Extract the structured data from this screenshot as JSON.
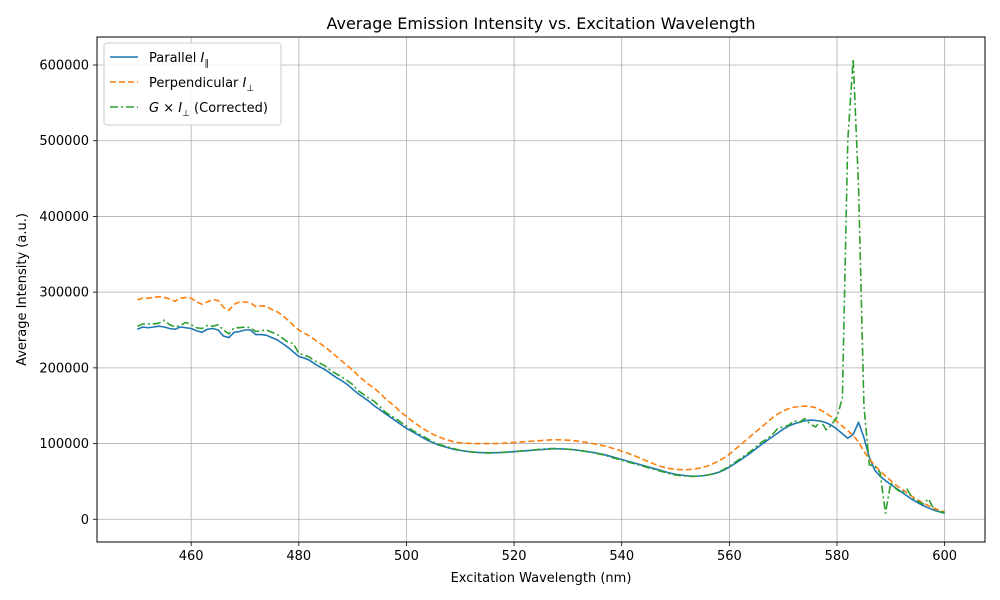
{
  "chart_data": {
    "type": "line",
    "title": "Average Emission Intensity vs. Excitation Wavelength",
    "xlabel": "Excitation Wavelength (nm)",
    "ylabel": "Average Intensity (a.u.)",
    "xlim": [
      442.5,
      607.5
    ],
    "ylim": [
      -30000,
      637000
    ],
    "xticks": [
      460,
      480,
      500,
      520,
      540,
      560,
      580,
      600
    ],
    "yticks": [
      0,
      100000,
      200000,
      300000,
      400000,
      500000,
      600000
    ],
    "grid": true,
    "legend_position": "top-left",
    "x": [
      450,
      451,
      452,
      453,
      454,
      455,
      456,
      457,
      458,
      459,
      460,
      461,
      462,
      463,
      464,
      465,
      466,
      467,
      468,
      469,
      470,
      471,
      472,
      473,
      474,
      475,
      476,
      477,
      478,
      479,
      480,
      481,
      482,
      483,
      484,
      485,
      486,
      487,
      488,
      489,
      490,
      491,
      492,
      493,
      494,
      495,
      496,
      497,
      498,
      499,
      500,
      501,
      502,
      503,
      504,
      505,
      506,
      507,
      508,
      509,
      510,
      511,
      512,
      513,
      514,
      515,
      516,
      517,
      518,
      519,
      520,
      521,
      522,
      523,
      524,
      525,
      526,
      527,
      528,
      529,
      530,
      531,
      532,
      533,
      534,
      535,
      536,
      537,
      538,
      539,
      540,
      541,
      542,
      543,
      544,
      545,
      546,
      547,
      548,
      549,
      550,
      551,
      552,
      553,
      554,
      555,
      556,
      557,
      558,
      559,
      560,
      561,
      562,
      563,
      564,
      565,
      566,
      567,
      568,
      569,
      570,
      571,
      572,
      573,
      574,
      575,
      576,
      577,
      578,
      579,
      580,
      581,
      582,
      583,
      584,
      585,
      586,
      587,
      588,
      589,
      590,
      591,
      592,
      593,
      594,
      595,
      596,
      597,
      598,
      599,
      600
    ],
    "series": [
      {
        "name": "Parallel $I_\\parallel$",
        "label_main": "Parallel ",
        "label_sym": "I",
        "label_sub": "∥",
        "label_post": "",
        "color": "#1f77b4",
        "dash": "solid",
        "values": [
          251000,
          254000,
          253000,
          254000,
          255000,
          254000,
          252000,
          251000,
          254000,
          253000,
          252000,
          249000,
          247000,
          251000,
          252000,
          250000,
          242000,
          240000,
          247000,
          248000,
          250000,
          250000,
          244000,
          244000,
          243000,
          240000,
          237000,
          232000,
          227000,
          221000,
          215000,
          213000,
          210000,
          205000,
          201000,
          197000,
          192000,
          187000,
          183000,
          178000,
          172000,
          166000,
          161000,
          156000,
          150000,
          145000,
          140000,
          135000,
          130000,
          125000,
          120000,
          116000,
          112000,
          108000,
          104000,
          101000,
          98000,
          96000,
          94000,
          92000,
          91000,
          90000,
          89000,
          88500,
          88000,
          88000,
          88000,
          88000,
          88500,
          89000,
          89500,
          90000,
          90500,
          91000,
          91500,
          92000,
          92500,
          93000,
          93000,
          93000,
          92500,
          92000,
          91000,
          90000,
          89000,
          88000,
          86500,
          85000,
          83000,
          81000,
          79000,
          77000,
          75000,
          73000,
          71000,
          69000,
          67000,
          65000,
          63000,
          61000,
          59500,
          58500,
          57500,
          57000,
          57000,
          57500,
          58500,
          60000,
          62000,
          65000,
          69000,
          73500,
          78000,
          83000,
          88000,
          93500,
          99000,
          104000,
          109000,
          114000,
          119000,
          123000,
          126000,
          128000,
          130000,
          131000,
          130500,
          129500,
          127500,
          124000,
          119000,
          113000,
          107000,
          112000,
          128000,
          108000,
          82000,
          65000,
          57000,
          51000,
          46000,
          41000,
          36000,
          31000,
          26000,
          22000,
          18000,
          15000,
          12000,
          10000,
          8000
        ]
      },
      {
        "name": "Perpendicular $I_\\perp$",
        "label_main": "Perpendicular ",
        "label_sym": "I",
        "label_sub": "⊥",
        "label_post": "",
        "color": "#ff7f0e",
        "dash": "6,3",
        "values": [
          290000,
          292000,
          292000,
          293000,
          294000,
          293000,
          291000,
          288000,
          292000,
          293000,
          292000,
          287000,
          284000,
          287000,
          290000,
          289000,
          280000,
          276000,
          284000,
          287000,
          287000,
          286000,
          281000,
          282000,
          281000,
          277000,
          274000,
          269000,
          263000,
          256000,
          250000,
          246000,
          242000,
          237000,
          232000,
          227000,
          221000,
          215000,
          209000,
          203000,
          197000,
          190000,
          184000,
          178000,
          173000,
          167000,
          160000,
          154000,
          148000,
          141000,
          136000,
          130000,
          125000,
          120000,
          116000,
          112000,
          109000,
          106000,
          104000,
          102000,
          101000,
          100500,
          100000,
          100000,
          100000,
          100000,
          100000,
          100000,
          100500,
          101000,
          101500,
          102000,
          102500,
          103000,
          103500,
          104000,
          104500,
          105000,
          105000,
          105000,
          104500,
          104000,
          103000,
          102000,
          101000,
          99500,
          98000,
          96500,
          94500,
          92500,
          90000,
          87500,
          85000,
          82000,
          79000,
          76000,
          73000,
          70500,
          68500,
          67000,
          66000,
          65500,
          65500,
          66000,
          67000,
          68500,
          70500,
          73500,
          77000,
          81000,
          86000,
          92000,
          98000,
          104000,
          110000,
          116000,
          122000,
          128000,
          134000,
          139000,
          143000,
          146000,
          148000,
          149000,
          149500,
          149000,
          147500,
          144000,
          140000,
          135000,
          129000,
          123000,
          117000,
          111000,
          102000,
          90000,
          80000,
          71000,
          64000,
          57000,
          51000,
          45000,
          40000,
          35000,
          30000,
          25500,
          21500,
          18000,
          14500,
          12000,
          10000
        ]
      },
      {
        "name": "$G\\times I_\\perp$ (Corrected)",
        "label_main": "",
        "label_sym": "G × I",
        "label_sub": "⊥",
        "label_post": " (Corrected)",
        "color": "#2ca02c",
        "dash": "8,3,2,3",
        "values": [
          255000,
          258000,
          258000,
          258000,
          259000,
          263000,
          257000,
          254000,
          256000,
          260000,
          257000,
          253000,
          252000,
          256000,
          255000,
          257000,
          250000,
          245000,
          253000,
          253000,
          254000,
          253000,
          248000,
          249000,
          250000,
          247000,
          244000,
          239000,
          234000,
          232000,
          219000,
          217000,
          214000,
          209000,
          206000,
          202000,
          196000,
          192000,
          188000,
          183000,
          178000,
          170000,
          165000,
          160000,
          156000,
          149000,
          142000,
          137000,
          133000,
          128000,
          123000,
          118000,
          114000,
          110000,
          106000,
          102000,
          99000,
          97000,
          95000,
          93000,
          91000,
          90000,
          89000,
          88500,
          88000,
          87500,
          87500,
          88000,
          88500,
          88500,
          89000,
          90000,
          90500,
          91000,
          92000,
          92500,
          93000,
          93500,
          93500,
          93000,
          92500,
          92000,
          91000,
          90000,
          89000,
          87500,
          86000,
          84500,
          82000,
          80000,
          78000,
          76000,
          74000,
          72000,
          70000,
          68000,
          66000,
          64000,
          62000,
          60000,
          58500,
          57500,
          57000,
          56500,
          57000,
          57500,
          58500,
          60000,
          62500,
          66000,
          70000,
          75000,
          80000,
          85000,
          90000,
          96000,
          102000,
          106000,
          112000,
          120000,
          122000,
          124000,
          130000,
          128000,
          133000,
          126000,
          122000,
          130000,
          118000,
          125000,
          135000,
          160000,
          500000,
          608000,
          440000,
          150000,
          72000,
          70000,
          62000,
          8000,
          48000,
          40000,
          35000,
          40000,
          28000,
          24000,
          20000,
          27000,
          13000,
          10000,
          9000
        ]
      }
    ]
  }
}
